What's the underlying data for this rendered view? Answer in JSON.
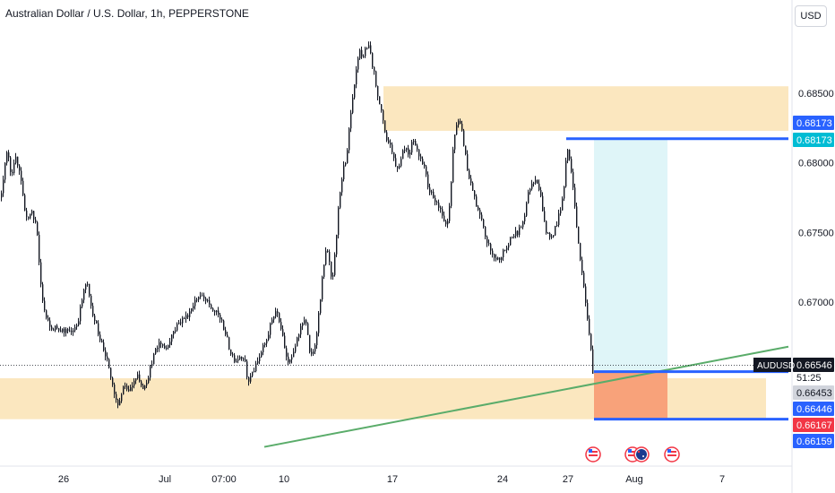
{
  "header": {
    "title": "Australian Dollar / U.S. Dollar, 1h, PEPPERSTONE",
    "currency_button": "USD"
  },
  "colors": {
    "candle": "#131722",
    "zone": "#fbe7bf",
    "target_zone": "#dff5f8",
    "stop_zone": "#f8a27a",
    "level_line": "#2962ff",
    "trendline": "#5aac6a",
    "label_blue": "#2962ff",
    "label_teal": "#00bcd4",
    "label_red": "#f23645",
    "label_gray": "#d1d4dc",
    "label_dark": "#131722"
  },
  "price_scale": {
    "ticks": [
      "0.68500",
      "0.68000",
      "0.67500",
      "0.67000"
    ],
    "labels": [
      {
        "text": "0.68173",
        "kind": "blue"
      },
      {
        "text": "0.68173",
        "kind": "teal"
      },
      {
        "text": "0.66546",
        "kind": "dark"
      },
      {
        "text": "51:25",
        "kind": "plain"
      },
      {
        "text": "0.66453",
        "kind": "gray"
      },
      {
        "text": "0.66446",
        "kind": "blue"
      },
      {
        "text": "0.66167",
        "kind": "red"
      },
      {
        "text": "0.66159",
        "kind": "blue"
      }
    ],
    "symbol_tag": "AUDUSD"
  },
  "time_scale": {
    "ticks": [
      "26",
      "Jul",
      "07:00",
      "10",
      "17",
      "24",
      "27",
      "Aug",
      "7"
    ]
  },
  "events": [
    "us-flag-icon",
    "us-flag-icon",
    "au-flag-icon",
    "us-flag-icon"
  ],
  "chart_data": {
    "type": "candlestick",
    "symbol": "AUDUSD",
    "timeframe": "1h",
    "ylim": [
      0.6594,
      0.689
    ],
    "close_path": [
      [
        0,
        0.6775
      ],
      [
        4,
        0.6795
      ],
      [
        8,
        0.681
      ],
      [
        12,
        0.679
      ],
      [
        16,
        0.6805
      ],
      [
        22,
        0.679
      ],
      [
        26,
        0.677
      ],
      [
        30,
        0.676
      ],
      [
        35,
        0.6765
      ],
      [
        40,
        0.6755
      ],
      [
        44,
        0.672
      ],
      [
        46,
        0.6705
      ],
      [
        50,
        0.669
      ],
      [
        56,
        0.668
      ],
      [
        62,
        0.6682
      ],
      [
        70,
        0.668
      ],
      [
        78,
        0.6678
      ],
      [
        86,
        0.6685
      ],
      [
        92,
        0.6705
      ],
      [
        96,
        0.6715
      ],
      [
        100,
        0.67
      ],
      [
        106,
        0.6685
      ],
      [
        112,
        0.6672
      ],
      [
        118,
        0.666
      ],
      [
        122,
        0.6648
      ],
      [
        126,
        0.6638
      ],
      [
        130,
        0.6625
      ],
      [
        134,
        0.663
      ],
      [
        138,
        0.664
      ],
      [
        143,
        0.6635
      ],
      [
        148,
        0.664
      ],
      [
        152,
        0.665
      ],
      [
        158,
        0.6638
      ],
      [
        164,
        0.6645
      ],
      [
        170,
        0.666
      ],
      [
        178,
        0.6672
      ],
      [
        184,
        0.6666
      ],
      [
        192,
        0.6678
      ],
      [
        200,
        0.6686
      ],
      [
        208,
        0.669
      ],
      [
        216,
        0.67
      ],
      [
        222,
        0.6705
      ],
      [
        230,
        0.67
      ],
      [
        236,
        0.6695
      ],
      [
        244,
        0.669
      ],
      [
        250,
        0.668
      ],
      [
        256,
        0.6665
      ],
      [
        262,
        0.6658
      ],
      [
        268,
        0.6662
      ],
      [
        272,
        0.666
      ],
      [
        276,
        0.6642
      ],
      [
        280,
        0.6648
      ],
      [
        286,
        0.6655
      ],
      [
        292,
        0.6666
      ],
      [
        298,
        0.6675
      ],
      [
        304,
        0.669
      ],
      [
        308,
        0.6695
      ],
      [
        314,
        0.668
      ],
      [
        318,
        0.6665
      ],
      [
        322,
        0.6655
      ],
      [
        328,
        0.6665
      ],
      [
        334,
        0.668
      ],
      [
        340,
        0.669
      ],
      [
        346,
        0.666
      ],
      [
        350,
        0.6665
      ],
      [
        354,
        0.6685
      ],
      [
        358,
        0.671
      ],
      [
        362,
        0.6735
      ],
      [
        366,
        0.6735
      ],
      [
        370,
        0.671
      ],
      [
        374,
        0.674
      ],
      [
        378,
        0.6775
      ],
      [
        382,
        0.6795
      ],
      [
        386,
        0.68
      ],
      [
        390,
        0.683
      ],
      [
        394,
        0.685
      ],
      [
        398,
        0.687
      ],
      [
        401,
        0.688
      ],
      [
        404,
        0.6875
      ],
      [
        408,
        0.6884
      ],
      [
        412,
        0.6882
      ],
      [
        418,
        0.686
      ],
      [
        424,
        0.684
      ],
      [
        428,
        0.6825
      ],
      [
        432,
        0.6815
      ],
      [
        436,
        0.6812
      ],
      [
        440,
        0.68
      ],
      [
        444,
        0.6795
      ],
      [
        448,
        0.6808
      ],
      [
        452,
        0.6812
      ],
      [
        456,
        0.6805
      ],
      [
        460,
        0.682
      ],
      [
        464,
        0.681
      ],
      [
        468,
        0.6805
      ],
      [
        472,
        0.68
      ],
      [
        478,
        0.678
      ],
      [
        482,
        0.6778
      ],
      [
        488,
        0.677
      ],
      [
        494,
        0.676
      ],
      [
        498,
        0.6752
      ],
      [
        502,
        0.6775
      ],
      [
        506,
        0.682
      ],
      [
        510,
        0.683
      ],
      [
        514,
        0.6825
      ],
      [
        518,
        0.681
      ],
      [
        522,
        0.679
      ],
      [
        526,
        0.6785
      ],
      [
        530,
        0.677
      ],
      [
        536,
        0.676
      ],
      [
        542,
        0.6745
      ],
      [
        548,
        0.6735
      ],
      [
        554,
        0.673
      ],
      [
        560,
        0.6735
      ],
      [
        566,
        0.674
      ],
      [
        572,
        0.6748
      ],
      [
        578,
        0.675
      ],
      [
        584,
        0.676
      ],
      [
        588,
        0.6775
      ],
      [
        592,
        0.6785
      ],
      [
        598,
        0.679
      ],
      [
        604,
        0.6772
      ],
      [
        608,
        0.6752
      ],
      [
        614,
        0.6745
      ],
      [
        620,
        0.6755
      ],
      [
        626,
        0.6768
      ],
      [
        630,
        0.679
      ],
      [
        632,
        0.6812
      ],
      [
        636,
        0.68
      ],
      [
        640,
        0.6775
      ],
      [
        644,
        0.675
      ],
      [
        648,
        0.6725
      ],
      [
        652,
        0.6705
      ],
      [
        656,
        0.6685
      ],
      [
        660,
        0.666
      ],
      [
        662,
        0.6636
      ]
    ],
    "zones": [
      {
        "x0": 428,
        "x1": 880,
        "y_top": 0.6855,
        "y_bottom": 0.6823
      },
      {
        "x0": 0,
        "x1": 855,
        "y_top": 0.66453,
        "y_bottom": 0.66159
      }
    ],
    "position": {
      "x0": 663,
      "x1": 745,
      "target": 0.68173,
      "entry": 0.665,
      "stop": 0.66159
    },
    "levels": [
      {
        "y": 0.68173,
        "x0": 632,
        "x1": 880
      },
      {
        "y": 0.665,
        "x0": 663,
        "x1": 880
      },
      {
        "y": 0.66159,
        "x0": 663,
        "x1": 880
      }
    ],
    "trendline": {
      "x0": 295,
      "y0": 0.6596,
      "x1": 880,
      "y1": 0.6668
    },
    "last_price": 0.66546,
    "event_x": [
      662,
      706,
      716,
      750
    ]
  }
}
